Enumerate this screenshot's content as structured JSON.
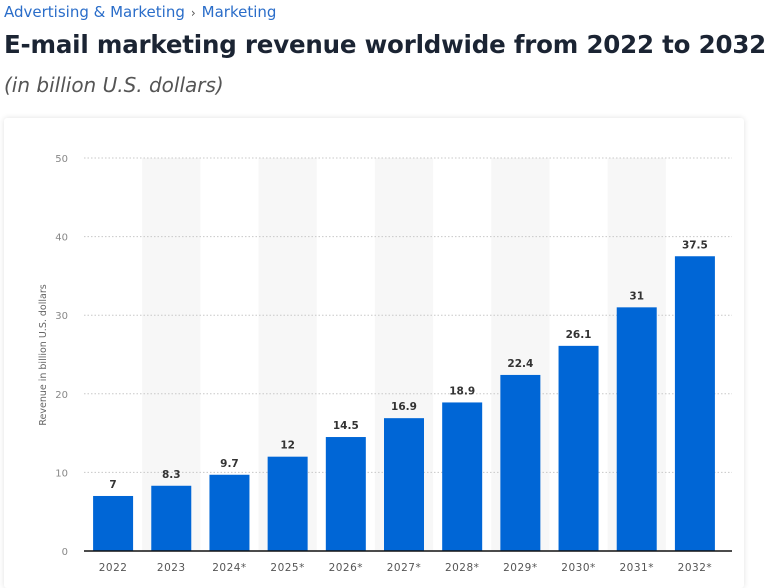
{
  "breadcrumb": {
    "items": [
      "Advertising & Marketing",
      "Marketing"
    ],
    "separator": "›"
  },
  "title": "E-mail marketing revenue worldwide from 2022 to 2032",
  "subtitle": "(in billion U.S. dollars)",
  "chart_data": {
    "type": "bar",
    "categories": [
      "2022",
      "2023",
      "2024*",
      "2025*",
      "2026*",
      "2027*",
      "2028*",
      "2029*",
      "2030*",
      "2031*",
      "2032*"
    ],
    "values": [
      7,
      8.3,
      9.7,
      12,
      14.5,
      16.9,
      18.9,
      22.4,
      26.1,
      31,
      37.5
    ],
    "value_labels": [
      "7",
      "8.3",
      "9.7",
      "12",
      "14.5",
      "16.9",
      "18.9",
      "22.4",
      "26.1",
      "31",
      "37.5"
    ],
    "ylabel": "Revenue in billion U.S. dollars",
    "xlabel": "",
    "ylim": [
      0,
      50
    ],
    "yticks": [
      0,
      10,
      20,
      30,
      40,
      50
    ],
    "grid": true,
    "colors": {
      "bar": "#0066d6",
      "band": "#f7f7f7",
      "grid": "#c8c8c8"
    }
  }
}
